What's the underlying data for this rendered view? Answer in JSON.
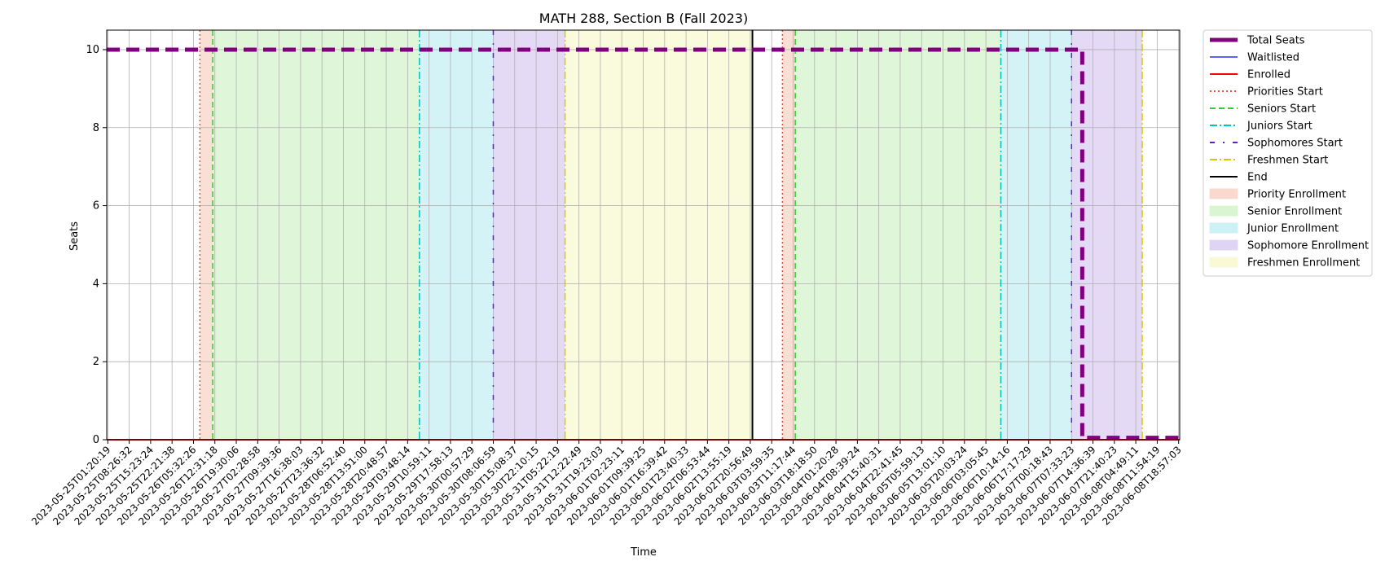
{
  "chart_data": {
    "type": "line",
    "title": "MATH 288, Section B (Fall 2023)",
    "xlabel": "Time",
    "ylabel": "Seats",
    "ylim": [
      0,
      10.5
    ],
    "yticks": [
      0,
      2,
      4,
      6,
      8,
      10
    ],
    "grid": true,
    "legend_position": "outside-right",
    "x_ticks": [
      "2023-05-25T01:20:19",
      "2023-05-25T08:26:32",
      "2023-05-25T15:23:24",
      "2023-05-25T22:21:38",
      "2023-05-26T05:32:26",
      "2023-05-26T12:31:18",
      "2023-05-26T19:30:06",
      "2023-05-27T02:28:58",
      "2023-05-27T09:39:36",
      "2023-05-27T16:38:03",
      "2023-05-27T23:36:32",
      "2023-05-28T06:52:40",
      "2023-05-28T13:51:00",
      "2023-05-28T20:48:57",
      "2023-05-29T03:48:14",
      "2023-05-29T10:59:11",
      "2023-05-29T17:58:13",
      "2023-05-30T00:57:29",
      "2023-05-30T08:06:59",
      "2023-05-30T15:08:37",
      "2023-05-30T22:10:15",
      "2023-05-31T05:22:19",
      "2023-05-31T12:22:49",
      "2023-05-31T19:23:03",
      "2023-06-01T02:23:11",
      "2023-06-01T09:39:25",
      "2023-06-01T16:39:42",
      "2023-06-01T23:40:33",
      "2023-06-02T06:53:44",
      "2023-06-02T13:55:19",
      "2023-06-02T20:56:49",
      "2023-06-03T03:59:35",
      "2023-06-03T11:17:44",
      "2023-06-03T18:18:50",
      "2023-06-04T01:20:28",
      "2023-06-04T08:39:24",
      "2023-06-04T15:40:31",
      "2023-06-04T22:41:45",
      "2023-06-05T05:59:13",
      "2023-06-05T13:01:10",
      "2023-06-05T20:03:24",
      "2023-06-06T03:05:45",
      "2023-06-06T10:14:16",
      "2023-06-06T17:17:29",
      "2023-06-07T00:18:43",
      "2023-06-07T07:33:23",
      "2023-06-07T14:36:39",
      "2023-06-07T21:40:23",
      "2023-06-08T04:49:11",
      "2023-06-08T11:54:19",
      "2023-06-08T18:57:03"
    ],
    "x_range_index": [
      -0.05,
      50.05
    ],
    "series": [
      {
        "name": "Total Seats",
        "color": "#800080",
        "style": "dashed-thick",
        "points": [
          [
            -0.05,
            10
          ],
          [
            45.5,
            10
          ],
          [
            45.5,
            0.05
          ],
          [
            50.05,
            0.05
          ]
        ]
      },
      {
        "name": "Waitlisted",
        "color": "#0000ff",
        "style": "solid-thin",
        "points": [
          [
            -0.05,
            0
          ],
          [
            50.05,
            0
          ]
        ]
      },
      {
        "name": "Enrolled",
        "color": "#ff0000",
        "style": "solid",
        "points": [
          [
            -0.05,
            0
          ],
          [
            50.05,
            0
          ]
        ]
      }
    ],
    "vertical_lines": [
      {
        "name": "Priorities Start",
        "color": "#e0533a",
        "style": "dotted",
        "x": [
          4.3,
          31.5
        ]
      },
      {
        "name": "Seniors Start",
        "color": "#2ecc2e",
        "style": "dashed",
        "x": [
          4.9,
          32.1
        ]
      },
      {
        "name": "Juniors Start",
        "color": "#00bfbf",
        "style": "dashdot",
        "x": [
          14.55,
          41.7
        ]
      },
      {
        "name": "Sophomores Start",
        "color": "#5a1fd6",
        "style": "sparse",
        "x": [
          18.0,
          45.0
        ]
      },
      {
        "name": "Freshmen Start",
        "color": "#d8c800",
        "style": "dashdot-y",
        "x": [
          21.35,
          48.3
        ]
      },
      {
        "name": "End",
        "color": "#000000",
        "style": "solid",
        "x": [
          30.1
        ]
      }
    ],
    "spans": [
      {
        "name": "Priority Enrollment",
        "color": "#f9d9ce",
        "ranges": [
          [
            4.3,
            4.9
          ],
          [
            31.5,
            32.1
          ]
        ]
      },
      {
        "name": "Senior Enrollment",
        "color": "#d9f5d2",
        "ranges": [
          [
            4.9,
            14.55
          ],
          [
            32.1,
            41.7
          ]
        ]
      },
      {
        "name": "Junior Enrollment",
        "color": "#cdf1f4",
        "ranges": [
          [
            14.55,
            18.0
          ],
          [
            41.7,
            45.0
          ]
        ]
      },
      {
        "name": "Sophomore Enrollment",
        "color": "#e0d4f5",
        "ranges": [
          [
            18.0,
            21.35
          ],
          [
            45.0,
            48.3
          ]
        ]
      },
      {
        "name": "Freshmen Enrollment",
        "color": "#f9f9d6",
        "ranges": [
          [
            21.35,
            30.1
          ]
        ]
      }
    ],
    "legend": [
      "Total Seats",
      "Waitlisted",
      "Enrolled",
      "Priorities Start",
      "Seniors Start",
      "Juniors Start",
      "Sophomores Start",
      "Freshmen Start",
      "End",
      "Priority Enrollment",
      "Senior Enrollment",
      "Junior Enrollment",
      "Sophomore Enrollment",
      "Freshmen Enrollment"
    ]
  }
}
